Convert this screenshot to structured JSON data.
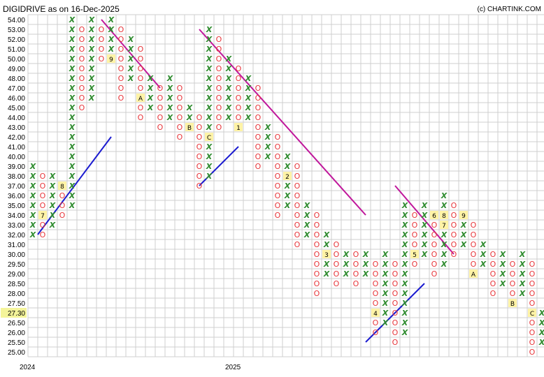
{
  "title": "DIGIDRIVE as on 16-Dec-2025",
  "copyright": "(c) CHARTINK.COM",
  "current_price": "27.30",
  "colors": {
    "x_mark": "#2e8b2e",
    "o_mark": "#e8373c",
    "resistance": "#c0179b",
    "support": "#1c1cd0",
    "grid": "#cfcfcf",
    "month_bg": "#fff3a6",
    "price_bg": "#f4f49a"
  },
  "chart_data": {
    "type": "point-and-figure",
    "ylim": [
      25.0,
      54.0
    ],
    "yticks": [
      "54.00",
      "53.00",
      "52.00",
      "51.00",
      "50.00",
      "49.00",
      "48.00",
      "47.00",
      "46.00",
      "45.00",
      "44.00",
      "43.00",
      "42.00",
      "41.00",
      "40.00",
      "39.00",
      "38.00",
      "37.00",
      "36.00",
      "35.00",
      "34.00",
      "33.00",
      "32.00",
      "31.00",
      "30.00",
      "29.50",
      "29.00",
      "28.50",
      "28.00",
      "27.50",
      "27.00",
      "26.50",
      "26.00",
      "25.50",
      "25.00"
    ],
    "year_labels": [
      {
        "label": "2024",
        "column": 0
      },
      {
        "label": "2025",
        "column": 21
      }
    ],
    "columns": [
      {
        "t": "X",
        "from": "32.00",
        "to": "39.00",
        "months": {}
      },
      {
        "t": "O",
        "from": "32.00",
        "to": "38.00",
        "months": {
          "34.00": "7"
        }
      },
      {
        "t": "X",
        "from": "33.00",
        "to": "38.00",
        "months": {}
      },
      {
        "t": "O",
        "from": "34.00",
        "to": "37.00",
        "months": {
          "37.00": "8"
        }
      },
      {
        "t": "X",
        "from": "35.00",
        "to": "54.00",
        "months": {}
      },
      {
        "t": "O",
        "from": "45.00",
        "to": "53.00",
        "months": {}
      },
      {
        "t": "X",
        "from": "46.00",
        "to": "54.00",
        "months": {}
      },
      {
        "t": "O",
        "from": "50.00",
        "to": "53.00",
        "months": {}
      },
      {
        "t": "X",
        "from": "50.00",
        "to": "54.00",
        "months": {
          "50.00": "9"
        }
      },
      {
        "t": "O",
        "from": "46.00",
        "to": "53.00",
        "months": {}
      },
      {
        "t": "X",
        "from": "48.00",
        "to": "52.00",
        "months": {}
      },
      {
        "t": "O",
        "from": "44.00",
        "to": "51.00",
        "months": {
          "46.00": "A"
        }
      },
      {
        "t": "X",
        "from": "45.00",
        "to": "48.00",
        "months": {}
      },
      {
        "t": "O",
        "from": "43.00",
        "to": "47.00",
        "months": {}
      },
      {
        "t": "X",
        "from": "44.00",
        "to": "48.00",
        "months": {}
      },
      {
        "t": "O",
        "from": "42.00",
        "to": "47.00",
        "months": {}
      },
      {
        "t": "X",
        "from": "43.00",
        "to": "45.00",
        "months": {
          "43.00": "B"
        }
      },
      {
        "t": "O",
        "from": "37.00",
        "to": "44.00",
        "months": {}
      },
      {
        "t": "X",
        "from": "38.00",
        "to": "53.00",
        "months": {
          "42.00": "C"
        }
      },
      {
        "t": "O",
        "from": "43.00",
        "to": "52.00",
        "months": {}
      },
      {
        "t": "X",
        "from": "44.00",
        "to": "50.00",
        "months": {}
      },
      {
        "t": "O",
        "from": "43.00",
        "to": "49.00",
        "months": {
          "43.00": "1"
        }
      },
      {
        "t": "X",
        "from": "44.00",
        "to": "48.00",
        "months": {}
      },
      {
        "t": "O",
        "from": "39.00",
        "to": "47.00",
        "months": {}
      },
      {
        "t": "X",
        "from": "40.00",
        "to": "43.00",
        "months": {}
      },
      {
        "t": "O",
        "from": "34.00",
        "to": "42.00",
        "months": {}
      },
      {
        "t": "X",
        "from": "35.00",
        "to": "40.00",
        "months": {
          "38.00": "2"
        }
      },
      {
        "t": "O",
        "from": "31.00",
        "to": "39.00",
        "months": {}
      },
      {
        "t": "X",
        "from": "32.00",
        "to": "35.00",
        "months": {}
      },
      {
        "t": "O",
        "from": "28.00",
        "to": "34.00",
        "months": {}
      },
      {
        "t": "X",
        "from": "29.00",
        "to": "32.00",
        "months": {
          "30.00": "3"
        }
      },
      {
        "t": "O",
        "from": "28.50",
        "to": "31.00",
        "months": {}
      },
      {
        "t": "X",
        "from": "29.00",
        "to": "30.00",
        "months": {}
      },
      {
        "t": "O",
        "from": "28.50",
        "to": "30.00",
        "months": {}
      },
      {
        "t": "X",
        "from": "29.00",
        "to": "30.00",
        "months": {}
      },
      {
        "t": "O",
        "from": "26.00",
        "to": "29.50",
        "months": {
          "27.00": "4"
        }
      },
      {
        "t": "X",
        "from": "26.50",
        "to": "30.00",
        "months": {}
      },
      {
        "t": "O",
        "from": "25.50",
        "to": "29.50",
        "months": {}
      },
      {
        "t": "X",
        "from": "26.00",
        "to": "35.00",
        "months": {}
      },
      {
        "t": "O",
        "from": "29.50",
        "to": "34.00",
        "months": {
          "30.00": "5"
        }
      },
      {
        "t": "X",
        "from": "30.00",
        "to": "35.00",
        "months": {}
      },
      {
        "t": "O",
        "from": "29.00",
        "to": "34.00",
        "months": {
          "34.00": "6"
        }
      },
      {
        "t": "X",
        "from": "29.50",
        "to": "36.00",
        "months": {
          "34.00": "8",
          "33.00": "7"
        }
      },
      {
        "t": "O",
        "from": "30.00",
        "to": "35.00",
        "months": {}
      },
      {
        "t": "X",
        "from": "31.00",
        "to": "34.00",
        "months": {
          "34.00": "9"
        }
      },
      {
        "t": "O",
        "from": "29.00",
        "to": "33.00",
        "months": {
          "29.00": "A"
        }
      },
      {
        "t": "X",
        "from": "29.50",
        "to": "31.00",
        "months": {}
      },
      {
        "t": "O",
        "from": "28.00",
        "to": "30.00",
        "months": {}
      },
      {
        "t": "X",
        "from": "28.50",
        "to": "30.00",
        "months": {}
      },
      {
        "t": "O",
        "from": "27.50",
        "to": "29.50",
        "months": {
          "27.50": "B"
        }
      },
      {
        "t": "X",
        "from": "28.00",
        "to": "30.00",
        "months": {}
      },
      {
        "t": "O",
        "from": "25.00",
        "to": "29.50",
        "months": {
          "27.00": "C"
        }
      },
      {
        "t": "X",
        "from": "25.50",
        "to": "27.00",
        "months": {}
      },
      {
        "t": "O",
        "from": "26.50",
        "to": "27.00",
        "months": {}
      },
      {
        "t": "X",
        "from": "26.50",
        "to": "28.00",
        "months": {}
      }
    ],
    "trendlines": [
      {
        "kind": "resistance",
        "from": {
          "column": 7.5,
          "price": "54.00"
        },
        "to": {
          "column": 13.5,
          "price": "47.00"
        }
      },
      {
        "kind": "resistance",
        "from": {
          "column": 17.5,
          "price": "53.00"
        },
        "to": {
          "column": 34.5,
          "price": "34.00"
        }
      },
      {
        "kind": "resistance",
        "from": {
          "column": 37.5,
          "price": "37.00"
        },
        "to": {
          "column": 43.5,
          "price": "30.00"
        }
      },
      {
        "kind": "support",
        "from": {
          "column": 1.0,
          "price": "32.00"
        },
        "to": {
          "column": 8.5,
          "price": "42.00"
        }
      },
      {
        "kind": "support",
        "from": {
          "column": 17.5,
          "price": "37.00"
        },
        "to": {
          "column": 21.5,
          "price": "41.00"
        }
      },
      {
        "kind": "support",
        "from": {
          "column": 34.5,
          "price": "25.50"
        },
        "to": {
          "column": 40.5,
          "price": "28.50"
        }
      }
    ]
  }
}
